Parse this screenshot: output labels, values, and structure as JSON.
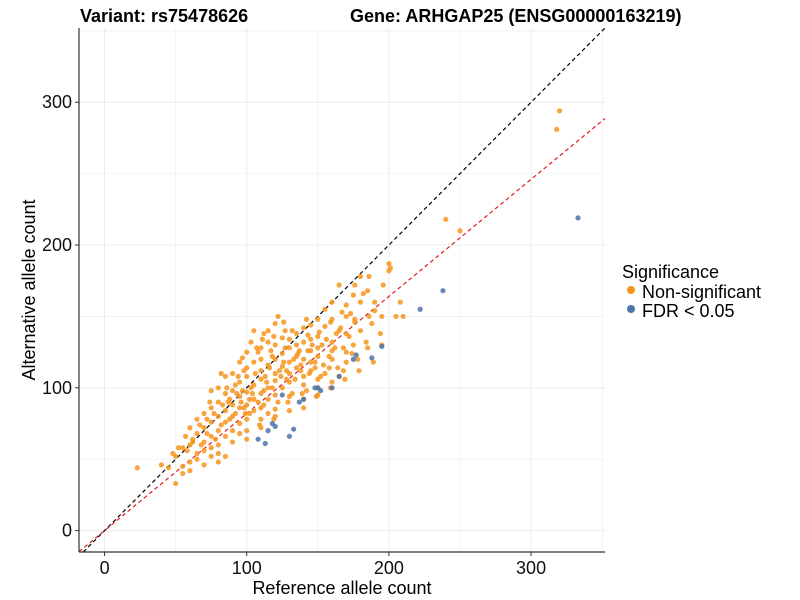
{
  "chart_data": {
    "type": "scatter",
    "title_left": "Variant: rs75478626",
    "title_right": "Gene: ARHGAP25 (ENSG00000163219)",
    "xlabel": "Reference allele count",
    "ylabel": "Alternative allele count",
    "xlim": [
      -18,
      352
    ],
    "ylim": [
      -15,
      352
    ],
    "xticks": [
      0,
      100,
      200,
      300
    ],
    "yticks": [
      0,
      100,
      200,
      300
    ],
    "grid": true,
    "reference_lines": [
      {
        "name": "identity",
        "slope": 1.0,
        "intercept": 0,
        "color": "#000000",
        "style": "dashed"
      },
      {
        "name": "fit",
        "slope": 0.82,
        "intercept": 0,
        "color": "#e41a1c",
        "style": "dashed"
      }
    ],
    "legend": {
      "title": "Significance",
      "position": "right",
      "entries": [
        {
          "label": "Non-significant",
          "color": "#f7941d"
        },
        {
          "label": "FDR < 0.05",
          "color": "#4a74a8"
        }
      ]
    },
    "series": [
      {
        "name": "Non-significant",
        "color": "#f7941d",
        "points": [
          [
            320,
            294
          ],
          [
            318,
            281
          ],
          [
            240,
            218
          ],
          [
            250,
            210
          ],
          [
            200,
            187
          ],
          [
            201,
            184
          ],
          [
            180,
            178
          ],
          [
            165,
            172
          ],
          [
            185,
            168
          ],
          [
            208,
            160
          ],
          [
            190,
            160
          ],
          [
            205,
            150
          ],
          [
            210,
            150
          ],
          [
            175,
            165
          ],
          [
            180,
            160
          ],
          [
            160,
            160
          ],
          [
            170,
            158
          ],
          [
            190,
            154
          ],
          [
            170,
            150
          ],
          [
            160,
            148
          ],
          [
            150,
            148
          ],
          [
            145,
            144
          ],
          [
            155,
            143
          ],
          [
            140,
            142
          ],
          [
            165,
            140
          ],
          [
            170,
            138
          ],
          [
            180,
            140
          ],
          [
            150,
            136
          ],
          [
            145,
            134
          ],
          [
            160,
            132
          ],
          [
            175,
            130
          ],
          [
            140,
            132
          ],
          [
            130,
            134
          ],
          [
            125,
            135
          ],
          [
            135,
            130
          ],
          [
            150,
            128
          ],
          [
            160,
            126
          ],
          [
            170,
            125
          ],
          [
            185,
            128
          ],
          [
            195,
            130
          ],
          [
            145,
            126
          ],
          [
            130,
            128
          ],
          [
            120,
            130
          ],
          [
            115,
            132
          ],
          [
            110,
            128
          ],
          [
            125,
            124
          ],
          [
            135,
            122
          ],
          [
            140,
            120
          ],
          [
            150,
            122
          ],
          [
            160,
            120
          ],
          [
            170,
            118
          ],
          [
            145,
            118
          ],
          [
            130,
            118
          ],
          [
            120,
            120
          ],
          [
            110,
            120
          ],
          [
            100,
            125
          ],
          [
            105,
            118
          ],
          [
            115,
            116
          ],
          [
            125,
            115
          ],
          [
            135,
            114
          ],
          [
            145,
            112
          ],
          [
            155,
            110
          ],
          [
            165,
            108
          ],
          [
            150,
            106
          ],
          [
            140,
            108
          ],
          [
            130,
            110
          ],
          [
            120,
            110
          ],
          [
            110,
            112
          ],
          [
            100,
            114
          ],
          [
            95,
            118
          ],
          [
            90,
            110
          ],
          [
            100,
            108
          ],
          [
            110,
            106
          ],
          [
            120,
            105
          ],
          [
            130,
            104
          ],
          [
            140,
            102
          ],
          [
            150,
            100
          ],
          [
            160,
            104
          ],
          [
            125,
            100
          ],
          [
            115,
            100
          ],
          [
            105,
            102
          ],
          [
            95,
            104
          ],
          [
            85,
            108
          ],
          [
            80,
            100
          ],
          [
            90,
            98
          ],
          [
            100,
            97
          ],
          [
            110,
            96
          ],
          [
            120,
            95
          ],
          [
            130,
            94
          ],
          [
            140,
            92
          ],
          [
            150,
            95
          ],
          [
            115,
            92
          ],
          [
            105,
            92
          ],
          [
            95,
            94
          ],
          [
            85,
            96
          ],
          [
            75,
            98
          ],
          [
            80,
            90
          ],
          [
            90,
            88
          ],
          [
            100,
            88
          ],
          [
            110,
            86
          ],
          [
            120,
            85
          ],
          [
            130,
            84
          ],
          [
            140,
            86
          ],
          [
            115,
            82
          ],
          [
            105,
            84
          ],
          [
            95,
            86
          ],
          [
            85,
            84
          ],
          [
            75,
            86
          ],
          [
            70,
            82
          ],
          [
            80,
            80
          ],
          [
            90,
            80
          ],
          [
            100,
            78
          ],
          [
            110,
            78
          ],
          [
            120,
            80
          ],
          [
            95,
            75
          ],
          [
            85,
            76
          ],
          [
            75,
            76
          ],
          [
            65,
            78
          ],
          [
            70,
            72
          ],
          [
            80,
            70
          ],
          [
            90,
            70
          ],
          [
            100,
            70
          ],
          [
            110,
            72
          ],
          [
            95,
            68
          ],
          [
            85,
            66
          ],
          [
            75,
            66
          ],
          [
            65,
            68
          ],
          [
            60,
            72
          ],
          [
            70,
            62
          ],
          [
            80,
            60
          ],
          [
            90,
            62
          ],
          [
            100,
            64
          ],
          [
            60,
            60
          ],
          [
            70,
            56
          ],
          [
            80,
            54
          ],
          [
            85,
            52
          ],
          [
            65,
            54
          ],
          [
            55,
            58
          ],
          [
            50,
            52
          ],
          [
            60,
            48
          ],
          [
            70,
            46
          ],
          [
            80,
            48
          ],
          [
            55,
            45
          ],
          [
            45,
            44
          ],
          [
            60,
            42
          ],
          [
            65,
            50
          ],
          [
            75,
            58
          ],
          [
            23,
            44
          ],
          [
            50,
            33
          ],
          [
            40,
            46
          ],
          [
            55,
            40
          ],
          [
            75,
            52
          ],
          [
            105,
            140
          ],
          [
            115,
            140
          ],
          [
            120,
            145
          ],
          [
            112,
            138
          ],
          [
            108,
            125
          ],
          [
            118,
            122
          ],
          [
            128,
            112
          ],
          [
            138,
            116
          ],
          [
            148,
            118
          ],
          [
            158,
            114
          ],
          [
            168,
            112
          ],
          [
            178,
            120
          ],
          [
            188,
            145
          ],
          [
            195,
            150
          ],
          [
            200,
            182
          ],
          [
            176,
            172
          ],
          [
            182,
            166
          ],
          [
            155,
            155
          ],
          [
            142,
            148
          ],
          [
            132,
            140
          ],
          [
            126,
            146
          ],
          [
            122,
            150
          ],
          [
            98,
            112
          ],
          [
            92,
            102
          ],
          [
            88,
            92
          ],
          [
            102,
            92
          ],
          [
            112,
            98
          ],
          [
            122,
            90
          ],
          [
            132,
            96
          ],
          [
            142,
            98
          ],
          [
            152,
            108
          ],
          [
            162,
            128
          ],
          [
            172,
            136
          ],
          [
            176,
            148
          ],
          [
            186,
            178
          ],
          [
            196,
            172
          ],
          [
            137,
            126
          ],
          [
            127,
            128
          ],
          [
            117,
            126
          ],
          [
            107,
            128
          ],
          [
            97,
            98
          ],
          [
            87,
            90
          ],
          [
            77,
            82
          ],
          [
            67,
            74
          ],
          [
            57,
            66
          ],
          [
            62,
            64
          ],
          [
            72,
            68
          ],
          [
            82,
            74
          ],
          [
            92,
            82
          ],
          [
            102,
            82
          ],
          [
            112,
            88
          ],
          [
            104,
            96
          ],
          [
            114,
            104
          ],
          [
            124,
            108
          ],
          [
            134,
            106
          ],
          [
            144,
            110
          ],
          [
            154,
            116
          ],
          [
            164,
            114
          ],
          [
            174,
            124
          ],
          [
            184,
            132
          ],
          [
            194,
            138
          ],
          [
            99,
            82
          ],
          [
            109,
            74
          ],
          [
            119,
            78
          ],
          [
            129,
            90
          ],
          [
            139,
            96
          ],
          [
            149,
            94
          ],
          [
            159,
            100
          ],
          [
            169,
            106
          ],
          [
            179,
            112
          ],
          [
            189,
            118
          ],
          [
            96,
            90
          ],
          [
            106,
            110
          ],
          [
            116,
            114
          ],
          [
            126,
            118
          ],
          [
            136,
            124
          ],
          [
            146,
            130
          ],
          [
            156,
            134
          ],
          [
            166,
            142
          ],
          [
            176,
            146
          ],
          [
            186,
            150
          ],
          [
            83,
            88
          ],
          [
            93,
            96
          ],
          [
            103,
            100
          ],
          [
            113,
            108
          ],
          [
            123,
            112
          ],
          [
            133,
            120
          ],
          [
            143,
            126
          ],
          [
            153,
            130
          ],
          [
            163,
            138
          ],
          [
            173,
            152
          ],
          [
            82,
            110
          ],
          [
            88,
            78
          ],
          [
            98,
            86
          ],
          [
            108,
            90
          ],
          [
            118,
            100
          ],
          [
            128,
            106
          ],
          [
            138,
            112
          ],
          [
            148,
            114
          ],
          [
            158,
            122
          ],
          [
            168,
            128
          ],
          [
            72,
            78
          ],
          [
            78,
            64
          ],
          [
            68,
            60
          ],
          [
            58,
            56
          ],
          [
            48,
            54
          ],
          [
            52,
            58
          ],
          [
            62,
            62
          ],
          [
            74,
            90
          ],
          [
            86,
            100
          ],
          [
            94,
            108
          ],
          [
            97,
            121
          ],
          [
            103,
            132
          ],
          [
            111,
            134
          ],
          [
            119,
            136
          ],
          [
            127,
            140
          ],
          [
            135,
            138
          ],
          [
            143,
            137
          ],
          [
            151,
            139
          ],
          [
            159,
            146
          ],
          [
            167,
            153
          ]
        ]
      },
      {
        "name": "FDR < 0.05",
        "color": "#4a74a8",
        "points": [
          [
            333,
            219
          ],
          [
            238,
            168
          ],
          [
            222,
            155
          ],
          [
            195,
            129
          ],
          [
            188,
            121
          ],
          [
            175,
            120
          ],
          [
            177,
            123
          ],
          [
            165,
            108
          ],
          [
            160,
            100
          ],
          [
            152,
            98
          ],
          [
            150,
            100
          ],
          [
            148,
            100
          ],
          [
            137,
            90
          ],
          [
            140,
            92
          ],
          [
            133,
            71
          ],
          [
            130,
            66
          ],
          [
            120,
            73
          ],
          [
            118,
            75
          ],
          [
            113,
            61
          ],
          [
            108,
            64
          ],
          [
            125,
            95
          ],
          [
            115,
            70
          ]
        ]
      }
    ]
  }
}
